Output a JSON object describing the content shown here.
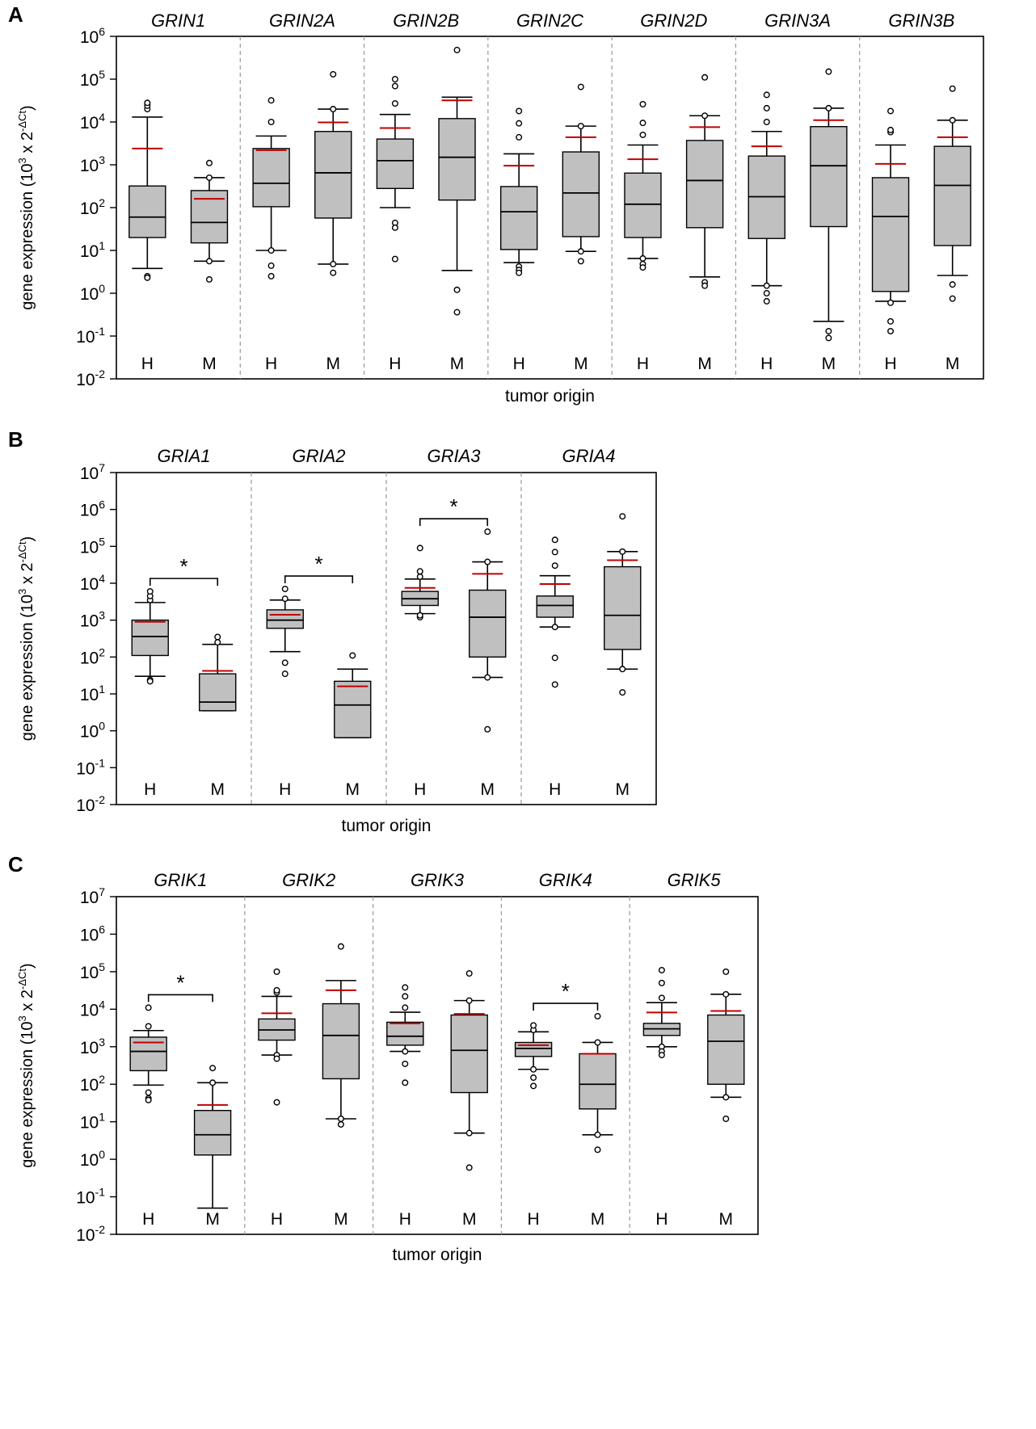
{
  "ylabel_prefix": "gene expression (10",
  "ylabel_sup1": "3",
  "ylabel_mid": " x 2",
  "ylabel_sup2": "-ΔCt",
  "ylabel_suffix": ")",
  "colors": {
    "box_fill": "#c0c0c0",
    "mean_line": "#c00000",
    "divider": "#999999"
  },
  "chart_data": [
    {
      "type": "box",
      "panel": "A",
      "xlabel": "tumor origin",
      "ylim_exp": [
        -2,
        6
      ],
      "yticks": [
        -2,
        -1,
        0,
        1,
        2,
        3,
        4,
        5,
        6
      ],
      "groups": [
        {
          "gene": "GRIN1",
          "boxes": [
            {
              "origin": "H",
              "whisker_low": 3.8,
              "q1": 20,
              "median": 60,
              "q3": 320,
              "whisker_high": 13000,
              "mean": 2400,
              "outliers": [
                2.5,
                2.3,
                20000,
                24000,
                28000
              ]
            },
            {
              "origin": "M",
              "whisker_low": 5.6,
              "q1": 15,
              "median": 45,
              "q3": 250,
              "whisker_high": 500,
              "mean": 160,
              "outliers": [
                5.6,
                2.1,
                500,
                1100
              ]
            }
          ]
        },
        {
          "gene": "GRIN2A",
          "boxes": [
            {
              "origin": "H",
              "whisker_low": 10,
              "q1": 105,
              "median": 370,
              "q3": 2400,
              "whisker_high": 4700,
              "mean": 2200,
              "outliers": [
                10,
                4.4,
                2.5,
                10000,
                32000
              ]
            },
            {
              "origin": "M",
              "whisker_low": 4.8,
              "q1": 57,
              "median": 650,
              "q3": 6000,
              "whisker_high": 20000,
              "mean": 9800,
              "outliers": [
                4.8,
                3.0,
                20000,
                130000
              ]
            }
          ]
        },
        {
          "gene": "GRIN2B",
          "boxes": [
            {
              "origin": "H",
              "whisker_low": 100,
              "q1": 280,
              "median": 1250,
              "q3": 4000,
              "whisker_high": 15000,
              "mean": 7200,
              "outliers": [
                44,
                34,
                6.3,
                27000,
                69000,
                100000
              ]
            },
            {
              "origin": "M",
              "whisker_low": 3.4,
              "q1": 150,
              "median": 1500,
              "q3": 12000,
              "whisker_high": 38000,
              "mean": 32000,
              "outliers": [
                1.2,
                0.36,
                480000
              ]
            }
          ]
        },
        {
          "gene": "GRIN2C",
          "boxes": [
            {
              "origin": "H",
              "whisker_low": 5.2,
              "q1": 10.5,
              "median": 80,
              "q3": 310,
              "whisker_high": 1800,
              "mean": 950,
              "outliers": [
                4.2,
                3.5,
                3.0,
                4400,
                9300,
                18000
              ]
            },
            {
              "origin": "M",
              "whisker_low": 9.5,
              "q1": 21,
              "median": 220,
              "q3": 2000,
              "whisker_high": 8000,
              "mean": 4400,
              "outliers": [
                9.5,
                5.6,
                8000,
                66000
              ]
            }
          ]
        },
        {
          "gene": "GRIN2D",
          "boxes": [
            {
              "origin": "H",
              "whisker_low": 6.5,
              "q1": 20,
              "median": 120,
              "q3": 640,
              "whisker_high": 2900,
              "mean": 1350,
              "outliers": [
                6.5,
                4.8,
                4.0,
                5000,
                9500,
                26000
              ]
            },
            {
              "origin": "M",
              "whisker_low": 2.4,
              "q1": 34,
              "median": 430,
              "q3": 3700,
              "whisker_high": 14000,
              "mean": 7600,
              "outliers": [
                1.8,
                1.5,
                14000,
                110000
              ]
            }
          ]
        },
        {
          "gene": "GRIN3A",
          "boxes": [
            {
              "origin": "H",
              "whisker_low": 1.5,
              "q1": 19,
              "median": 180,
              "q3": 1600,
              "whisker_high": 6000,
              "mean": 2700,
              "outliers": [
                1.5,
                1.0,
                0.65,
                10000,
                21000,
                43000
              ]
            },
            {
              "origin": "M",
              "whisker_low": 0.22,
              "q1": 36,
              "median": 950,
              "q3": 7800,
              "whisker_high": 21000,
              "mean": 11000,
              "outliers": [
                0.13,
                0.09,
                21000,
                150000
              ]
            }
          ]
        },
        {
          "gene": "GRIN3B",
          "boxes": [
            {
              "origin": "H",
              "whisker_low": 0.65,
              "q1": 1.1,
              "median": 62,
              "q3": 500,
              "whisker_high": 2900,
              "mean": 1050,
              "outliers": [
                0.6,
                0.22,
                0.13,
                5800,
                6500,
                18000
              ]
            },
            {
              "origin": "M",
              "whisker_low": 2.6,
              "q1": 13,
              "median": 330,
              "q3": 2700,
              "whisker_high": 11000,
              "mean": 4400,
              "outliers": [
                1.6,
                0.75,
                11000,
                60000
              ]
            }
          ]
        }
      ]
    },
    {
      "type": "box",
      "panel": "B",
      "xlabel": "tumor origin",
      "ylim_exp": [
        -2,
        7
      ],
      "yticks": [
        -2,
        -1,
        0,
        1,
        2,
        3,
        4,
        5,
        6,
        7
      ],
      "groups": [
        {
          "gene": "GRIA1",
          "boxes": [
            {
              "origin": "H",
              "whisker_low": 30,
              "q1": 110,
              "median": 360,
              "q3": 1000,
              "whisker_high": 3000,
              "mean": 900,
              "outliers": [
                24,
                22,
                3500,
                4500,
                6000
              ]
            },
            {
              "origin": "M",
              "whisker_low": 3.5,
              "q1": 3.5,
              "median": 6,
              "q3": 35,
              "whisker_high": 220,
              "mean": 42,
              "outliers": [
                250,
                350
              ]
            }
          ]
        },
        {
          "gene": "GRIA2",
          "boxes": [
            {
              "origin": "H",
              "whisker_low": 140,
              "q1": 600,
              "median": 1000,
              "q3": 1900,
              "whisker_high": 3500,
              "mean": 1400,
              "outliers": [
                70,
                35,
                3800,
                7000
              ]
            },
            {
              "origin": "M",
              "whisker_low": 0.65,
              "q1": 0.65,
              "median": 5,
              "q3": 22,
              "whisker_high": 47,
              "mean": 16,
              "outliers": [
                110
              ]
            }
          ]
        },
        {
          "gene": "GRIA3",
          "boxes": [
            {
              "origin": "H",
              "whisker_low": 1500,
              "q1": 2500,
              "median": 3800,
              "q3": 6000,
              "whisker_high": 13000,
              "mean": 7500,
              "outliers": [
                1200,
                1350,
                15000,
                21000,
                90000
              ]
            },
            {
              "origin": "M",
              "whisker_low": 28,
              "q1": 100,
              "median": 1200,
              "q3": 6500,
              "whisker_high": 38000,
              "mean": 18000,
              "outliers": [
                28,
                1.1,
                38000,
                250000
              ]
            }
          ]
        },
        {
          "gene": "GRIA4",
          "boxes": [
            {
              "origin": "H",
              "whisker_low": 650,
              "q1": 1200,
              "median": 2500,
              "q3": 4500,
              "whisker_high": 16000,
              "mean": 9500,
              "outliers": [
                650,
                95,
                18,
                30000,
                70000,
                150000
              ]
            },
            {
              "origin": "M",
              "whisker_low": 47,
              "q1": 160,
              "median": 1350,
              "q3": 28000,
              "whisker_high": 72000,
              "mean": 42000,
              "outliers": [
                47,
                11,
                72000,
                650000
              ]
            }
          ]
        }
      ],
      "annotations": [
        {
          "groups": [
            0,
            0
          ],
          "text": "*"
        },
        {
          "groups": [
            1,
            1
          ],
          "text": "*"
        },
        {
          "groups": [
            2,
            2
          ],
          "text": "*"
        }
      ]
    },
    {
      "type": "box",
      "panel": "C",
      "xlabel": "tumor origin",
      "ylim_exp": [
        -2,
        7
      ],
      "yticks": [
        -2,
        -1,
        0,
        1,
        2,
        3,
        4,
        5,
        6,
        7
      ],
      "groups": [
        {
          "gene": "GRIK1",
          "boxes": [
            {
              "origin": "H",
              "whisker_low": 95,
              "q1": 230,
              "median": 750,
              "q3": 1800,
              "whisker_high": 2700,
              "mean": 1300,
              "outliers": [
                60,
                42,
                38,
                3500,
                11000
              ]
            },
            {
              "origin": "M",
              "whisker_low": 0.05,
              "q1": 1.3,
              "median": 4.5,
              "q3": 20,
              "whisker_high": 110,
              "mean": 28,
              "outliers": [
                110,
                270
              ]
            }
          ]
        },
        {
          "gene": "GRIK2",
          "boxes": [
            {
              "origin": "H",
              "whisker_low": 600,
              "q1": 1500,
              "median": 2800,
              "q3": 5500,
              "whisker_high": 22000,
              "mean": 7800,
              "outliers": [
                600,
                480,
                33,
                28000,
                32000,
                100000
              ]
            },
            {
              "origin": "M",
              "whisker_low": 12,
              "q1": 140,
              "median": 2000,
              "q3": 14000,
              "whisker_high": 58000,
              "mean": 32000,
              "outliers": [
                12,
                8.5,
                470000
              ]
            }
          ]
        },
        {
          "gene": "GRIK3",
          "boxes": [
            {
              "origin": "H",
              "whisker_low": 750,
              "q1": 1100,
              "median": 1900,
              "q3": 4500,
              "whisker_high": 8300,
              "mean": 4200,
              "outliers": [
                750,
                350,
                110,
                11000,
                22000,
                38000
              ]
            },
            {
              "origin": "M",
              "whisker_low": 5,
              "q1": 60,
              "median": 800,
              "q3": 7000,
              "whisker_high": 17000,
              "mean": 7500,
              "outliers": [
                5,
                0.6,
                17000,
                90000
              ]
            }
          ]
        },
        {
          "gene": "GRIK4",
          "boxes": [
            {
              "origin": "H",
              "whisker_low": 250,
              "q1": 550,
              "median": 900,
              "q3": 1300,
              "whisker_high": 2500,
              "mean": 1100,
              "outliers": [
                250,
                150,
                90,
                2800,
                3700
              ]
            },
            {
              "origin": "M",
              "whisker_low": 4.5,
              "q1": 22,
              "median": 100,
              "q3": 650,
              "whisker_high": 1300,
              "mean": 650,
              "outliers": [
                4.5,
                1.8,
                1300,
                6500
              ]
            }
          ]
        },
        {
          "gene": "GRIK5",
          "boxes": [
            {
              "origin": "H",
              "whisker_low": 1000,
              "q1": 2000,
              "median": 3000,
              "q3": 4200,
              "whisker_high": 15000,
              "mean": 8200,
              "outliers": [
                1000,
                750,
                600,
                20000,
                50000,
                110000
              ]
            },
            {
              "origin": "M",
              "whisker_low": 45,
              "q1": 100,
              "median": 1400,
              "q3": 7000,
              "whisker_high": 25000,
              "mean": 9000,
              "outliers": [
                45,
                12,
                25000,
                100000
              ]
            }
          ]
        }
      ],
      "annotations": [
        {
          "groups": [
            0,
            0
          ],
          "text": "*"
        },
        {
          "groups": [
            3,
            3
          ],
          "text": "*"
        }
      ]
    }
  ]
}
